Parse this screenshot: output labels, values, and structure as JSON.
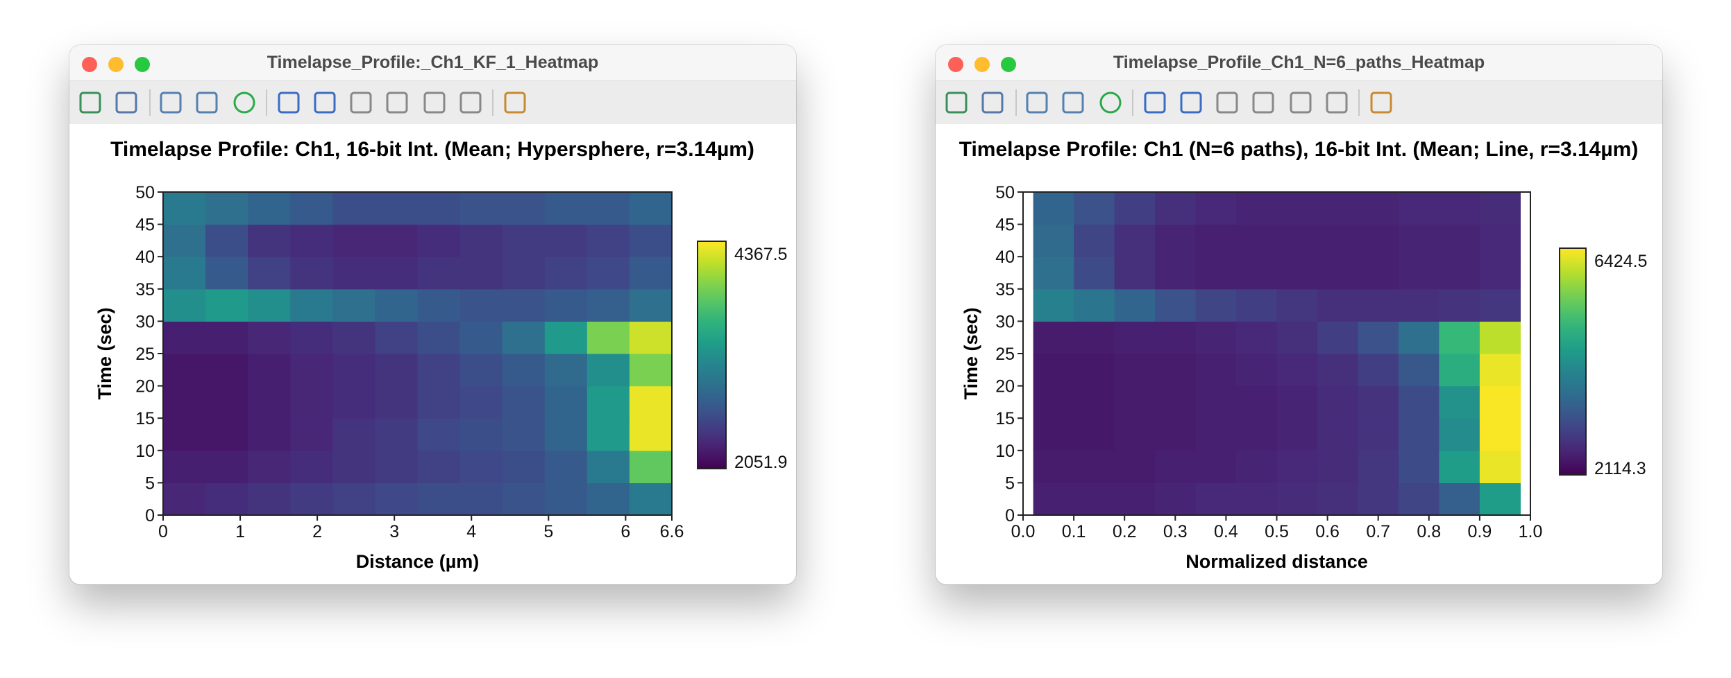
{
  "window_titles": [
    "Timelapse_Profile:_Ch1_KF_1_Heatmap",
    "Timelapse_Profile_Ch1_N=6_paths_Heatmap"
  ],
  "chart_data": [
    {
      "type": "heatmap",
      "title": "Timelapse Profile: Ch1, 16-bit Int. (Mean; Hypersphere, r=3.14µm)",
      "x_label": "Distance (µm)",
      "y_label": "Time (sec)",
      "colormap": "viridis",
      "xlim": [
        0,
        6.6
      ],
      "xticks": [
        0,
        1,
        2,
        3,
        4,
        5,
        6,
        6.6
      ],
      "ylim": [
        0,
        50
      ],
      "yticks": [
        0,
        5,
        10,
        15,
        20,
        25,
        30,
        35,
        40,
        45,
        50
      ],
      "zlim": [
        2051.9,
        4367.5
      ],
      "xedges": [
        0,
        0.55,
        1.1,
        1.65,
        2.2,
        2.75,
        3.3,
        3.85,
        4.4,
        4.95,
        5.5,
        6.05,
        6.6
      ],
      "yedges": [
        0,
        5,
        10,
        15,
        20,
        25,
        30,
        35,
        40,
        45,
        50
      ],
      "z": [
        [
          2300,
          2350,
          2400,
          2450,
          2500,
          2550,
          2600,
          2600,
          2650,
          2700,
          2800,
          3000
        ],
        [
          2250,
          2250,
          2300,
          2350,
          2400,
          2450,
          2500,
          2550,
          2600,
          2700,
          3000,
          3800
        ],
        [
          2200,
          2200,
          2250,
          2300,
          2400,
          2450,
          2550,
          2600,
          2650,
          2800,
          3300,
          4300
        ],
        [
          2200,
          2200,
          2250,
          2300,
          2350,
          2400,
          2500,
          2550,
          2650,
          2800,
          3300,
          4300
        ],
        [
          2200,
          2200,
          2250,
          2300,
          2350,
          2400,
          2500,
          2600,
          2700,
          2850,
          3200,
          3900
        ],
        [
          2250,
          2250,
          2300,
          2350,
          2400,
          2500,
          2600,
          2700,
          2900,
          3300,
          3900,
          4200
        ],
        [
          3200,
          3300,
          3200,
          3000,
          2900,
          2800,
          2700,
          2650,
          2650,
          2700,
          2750,
          2900
        ],
        [
          3000,
          2700,
          2500,
          2400,
          2350,
          2350,
          2400,
          2400,
          2450,
          2500,
          2550,
          2700
        ],
        [
          2900,
          2600,
          2400,
          2350,
          2300,
          2300,
          2350,
          2400,
          2450,
          2450,
          2500,
          2600
        ],
        [
          3000,
          2900,
          2800,
          2700,
          2600,
          2600,
          2600,
          2650,
          2650,
          2700,
          2700,
          2800
        ]
      ]
    },
    {
      "type": "heatmap",
      "title": "Timelapse Profile: Ch1 (N=6 paths), 16-bit Int. (Mean; Line, r=3.14µm)",
      "x_label": "Normalized distance",
      "y_label": "Time (sec)",
      "colormap": "viridis",
      "xlim": [
        0,
        1
      ],
      "xticks": [
        {
          "value": 0,
          "label": "0.0"
        },
        0.1,
        0.2,
        0.3,
        0.4,
        0.5,
        0.6,
        0.7,
        0.8,
        0.9,
        {
          "value": 1,
          "label": "1.0"
        }
      ],
      "ylim": [
        0,
        50
      ],
      "yticks": [
        0,
        5,
        10,
        15,
        20,
        25,
        30,
        35,
        40,
        45,
        50
      ],
      "zlim": [
        2114.3,
        6424.5
      ],
      "xedges": [
        0.02,
        0.1,
        0.18,
        0.26,
        0.34,
        0.42,
        0.5,
        0.58,
        0.66,
        0.74,
        0.82,
        0.9,
        0.98
      ],
      "yedges": [
        0,
        5,
        10,
        15,
        20,
        25,
        30,
        35,
        40,
        45,
        50
      ],
      "z": [
        [
          2500,
          2500,
          2500,
          2550,
          2600,
          2600,
          2650,
          2700,
          2800,
          3000,
          3400,
          4500
        ],
        [
          2450,
          2450,
          2450,
          2500,
          2500,
          2550,
          2600,
          2650,
          2800,
          3100,
          4500,
          6300
        ],
        [
          2400,
          2400,
          2450,
          2450,
          2500,
          2500,
          2550,
          2650,
          2750,
          3100,
          4200,
          6400
        ],
        [
          2400,
          2400,
          2450,
          2450,
          2500,
          2500,
          2550,
          2650,
          2750,
          3100,
          4300,
          6400
        ],
        [
          2400,
          2400,
          2450,
          2450,
          2500,
          2550,
          2600,
          2700,
          2900,
          3300,
          4800,
          6300
        ],
        [
          2450,
          2450,
          2500,
          2500,
          2550,
          2600,
          2700,
          2900,
          3200,
          3700,
          5000,
          6000
        ],
        [
          4000,
          3800,
          3500,
          3200,
          3000,
          2900,
          2800,
          2700,
          2700,
          2700,
          2750,
          2800
        ],
        [
          3700,
          3100,
          2700,
          2550,
          2500,
          2500,
          2500,
          2500,
          2500,
          2550,
          2550,
          2600
        ],
        [
          3600,
          3000,
          2700,
          2550,
          2500,
          2500,
          2500,
          2500,
          2500,
          2550,
          2550,
          2600
        ],
        [
          3500,
          3200,
          2900,
          2700,
          2600,
          2550,
          2550,
          2550,
          2550,
          2600,
          2600,
          2650
        ]
      ]
    }
  ]
}
